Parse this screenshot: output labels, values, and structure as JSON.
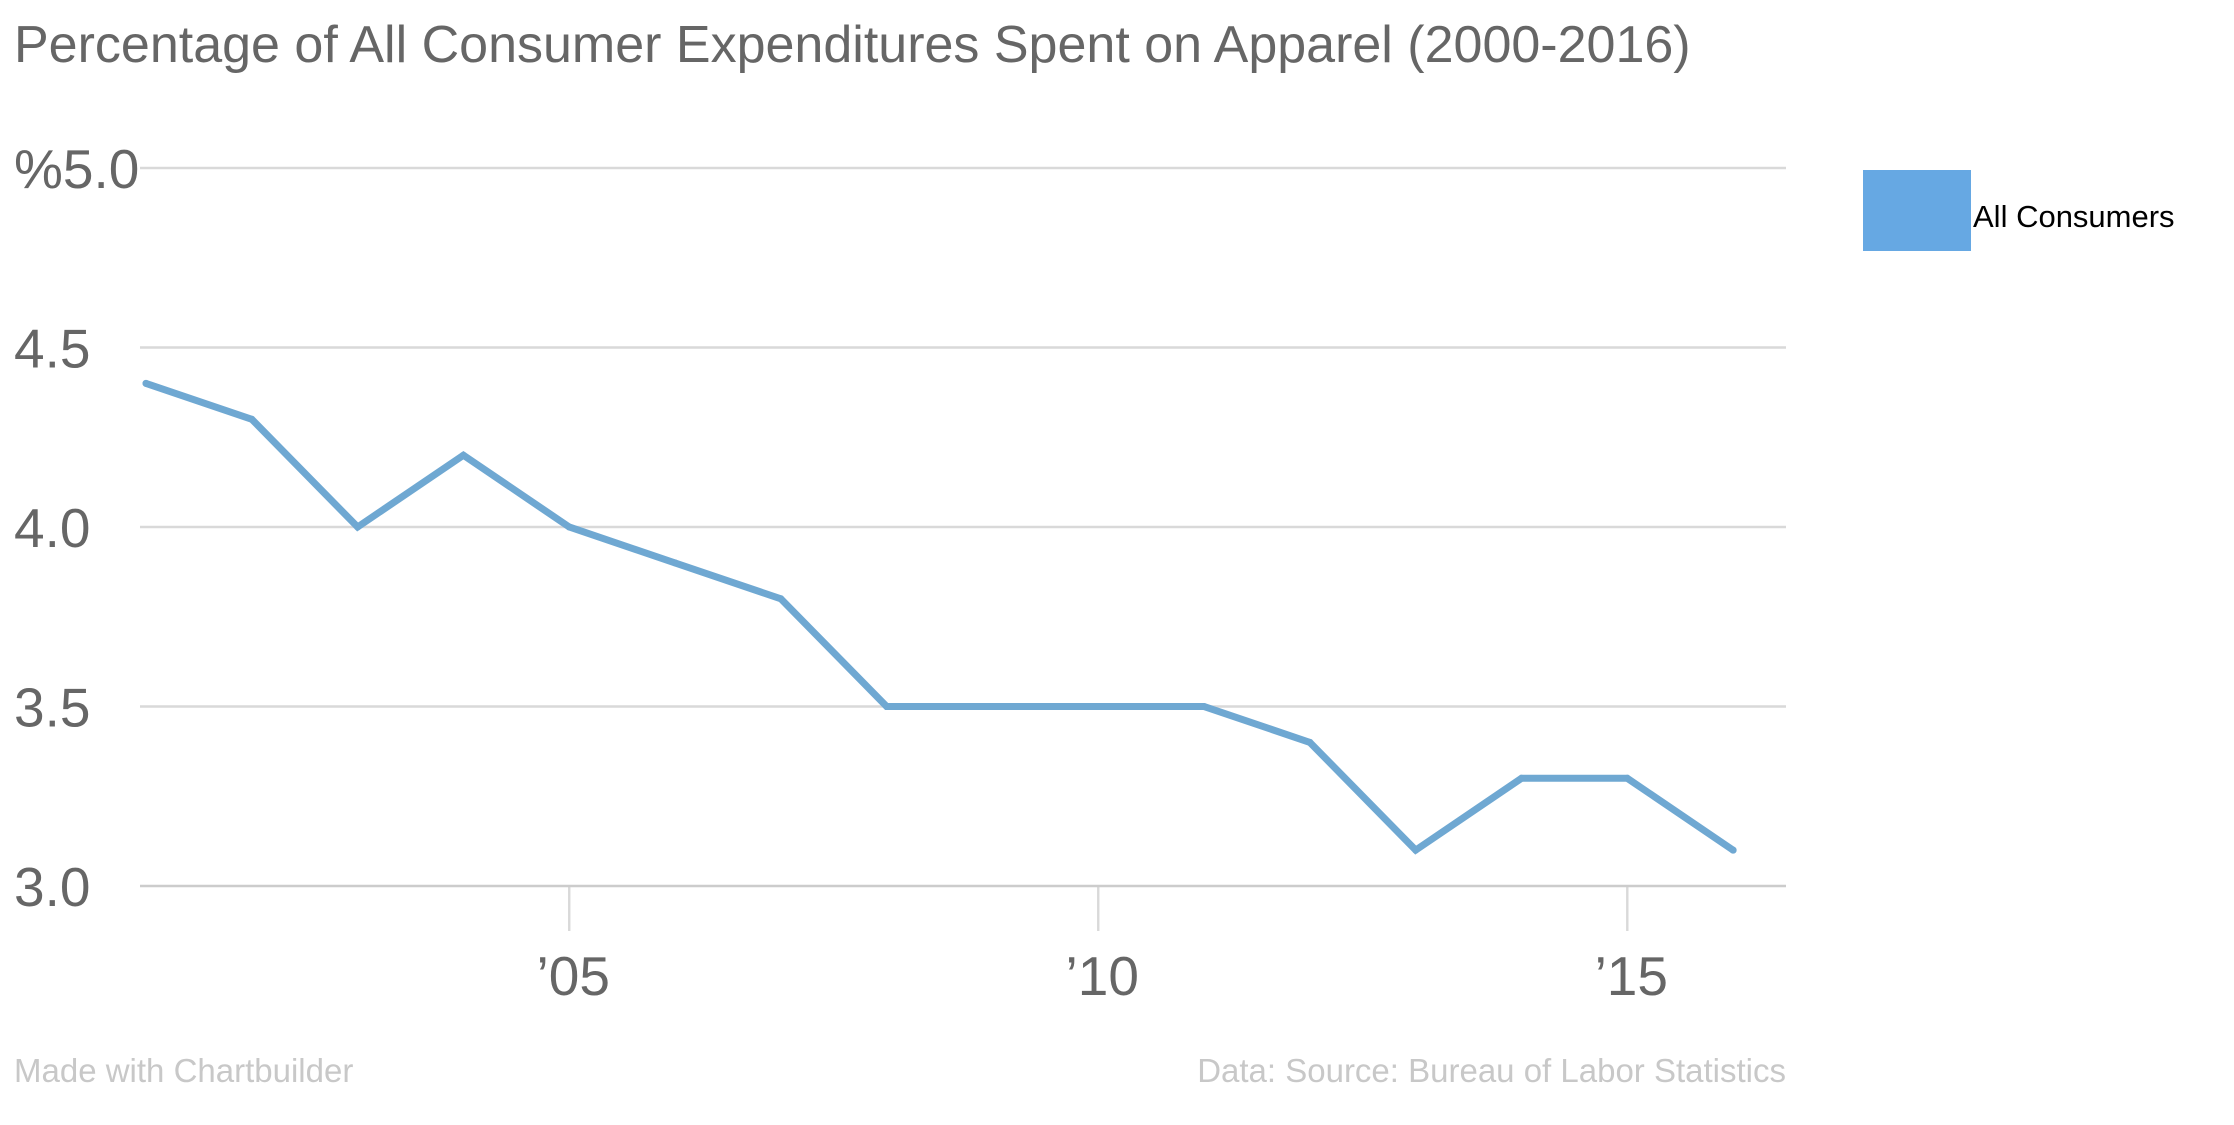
{
  "chart_data": {
    "type": "line",
    "title": "Percentage of All Consumer Expenditures Spent on Apparel (2000-2016)",
    "xlabel": "",
    "ylabel": "",
    "x": [
      2001,
      2002,
      2003,
      2004,
      2005,
      2006,
      2007,
      2008,
      2009,
      2010,
      2011,
      2012,
      2013,
      2014,
      2015,
      2016
    ],
    "series": [
      {
        "name": "All Consumers",
        "color": "#6fa8d2",
        "values": [
          4.4,
          4.3,
          4.0,
          4.2,
          4.0,
          3.9,
          3.8,
          3.5,
          3.5,
          3.5,
          3.5,
          3.4,
          3.1,
          3.3,
          3.3,
          3.1
        ]
      }
    ],
    "xlim": [
      2001,
      2016.5
    ],
    "ylim": [
      3.0,
      5.0
    ],
    "y_ticks": [
      {
        "value": 5.0,
        "label": "%5.0"
      },
      {
        "value": 4.5,
        "label": "4.5"
      },
      {
        "value": 4.0,
        "label": "4.0"
      },
      {
        "value": 3.5,
        "label": "3.5"
      },
      {
        "value": 3.0,
        "label": "3.0"
      }
    ],
    "x_ticks": [
      {
        "value": 2005,
        "label": "’05"
      },
      {
        "value": 2010,
        "label": "’10"
      },
      {
        "value": 2015,
        "label": "’15"
      }
    ],
    "grid": true,
    "legend": {
      "position": "top-right",
      "swatch_color": "#66a8e3",
      "entries": [
        "All Consumers"
      ]
    }
  },
  "footer": {
    "credit": "Made with Chartbuilder",
    "source": "Data: Source: Bureau of Labor Statistics"
  }
}
